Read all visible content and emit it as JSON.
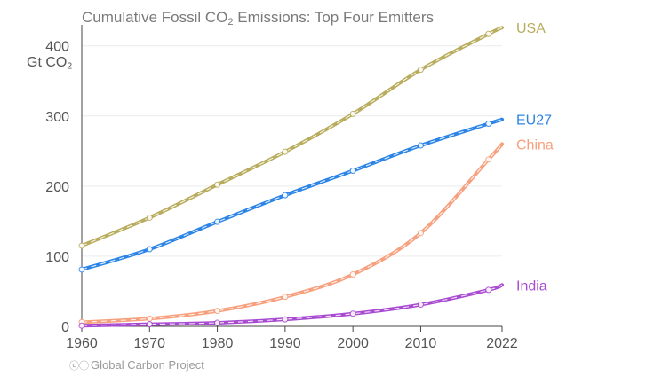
{
  "chart_data": {
    "type": "line",
    "title": "Cumulative Fossil CO",
    "title_sub": "2",
    "title_rest": " Emissions: Top Four Emitters",
    "ylabel": "Gt CO",
    "ylabel_sub": "2",
    "xlabel": "",
    "xlim": [
      1960,
      2022
    ],
    "ylim": [
      0,
      430
    ],
    "xticks": [
      1960,
      1970,
      1980,
      1990,
      2000,
      2010,
      2022
    ],
    "yticks": [
      0,
      100,
      200,
      300,
      400
    ],
    "grid": true,
    "series": [
      {
        "name": "USA",
        "color": "#b8ad5e",
        "x": [
          1960,
          1970,
          1980,
          1990,
          2000,
          2010,
          2020,
          2022
        ],
        "values": [
          115,
          155,
          202,
          249,
          303,
          366,
          417,
          426
        ]
      },
      {
        "name": "EU27",
        "color": "#2c85e6",
        "x": [
          1960,
          1970,
          1980,
          1990,
          2000,
          2010,
          2020,
          2022
        ],
        "values": [
          81,
          110,
          149,
          187,
          222,
          258,
          289,
          295
        ]
      },
      {
        "name": "China",
        "color": "#f7a07e",
        "x": [
          1960,
          1970,
          1980,
          1990,
          2000,
          2010,
          2020,
          2022
        ],
        "values": [
          6,
          11,
          22,
          42,
          74,
          133,
          238,
          260
        ]
      },
      {
        "name": "India",
        "color": "#a94bd1",
        "x": [
          1960,
          1970,
          1980,
          1990,
          2000,
          2010,
          2020,
          2022
        ],
        "values": [
          1,
          3,
          5,
          10,
          18,
          31,
          52,
          59
        ]
      }
    ]
  },
  "credit": {
    "icon": "cc-by-icon",
    "text": "Global Carbon Project"
  }
}
